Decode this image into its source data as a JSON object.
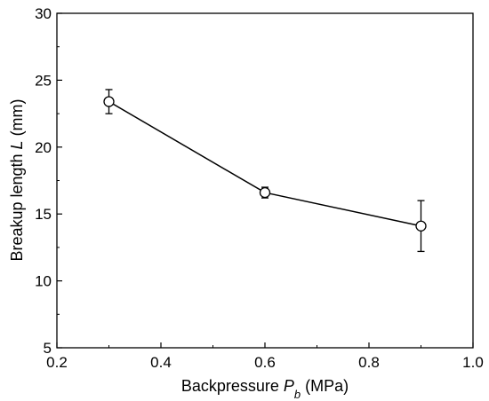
{
  "chart_data": {
    "type": "line",
    "title": "",
    "xlabel": {
      "prefix": "Backpressure ",
      "symbol": "P",
      "subscript": "b",
      "suffix": " (MPa)"
    },
    "ylabel": {
      "prefix": "Breakup length ",
      "symbol": "L",
      "suffix": " (mm)"
    },
    "xlim": [
      0.2,
      1.0
    ],
    "ylim": [
      5,
      30
    ],
    "xticks": [
      "0.2",
      "0.4",
      "0.6",
      "0.8",
      "1.0"
    ],
    "yticks": [
      "5",
      "10",
      "15",
      "20",
      "25",
      "30"
    ],
    "grid": false,
    "legend": "none",
    "series": [
      {
        "x": [
          0.3,
          0.6,
          0.9
        ],
        "y": [
          23.4,
          16.6,
          14.1
        ],
        "yerr": [
          0.9,
          0.4,
          1.9
        ],
        "marker": "open-circle",
        "color": "#000000"
      }
    ]
  }
}
